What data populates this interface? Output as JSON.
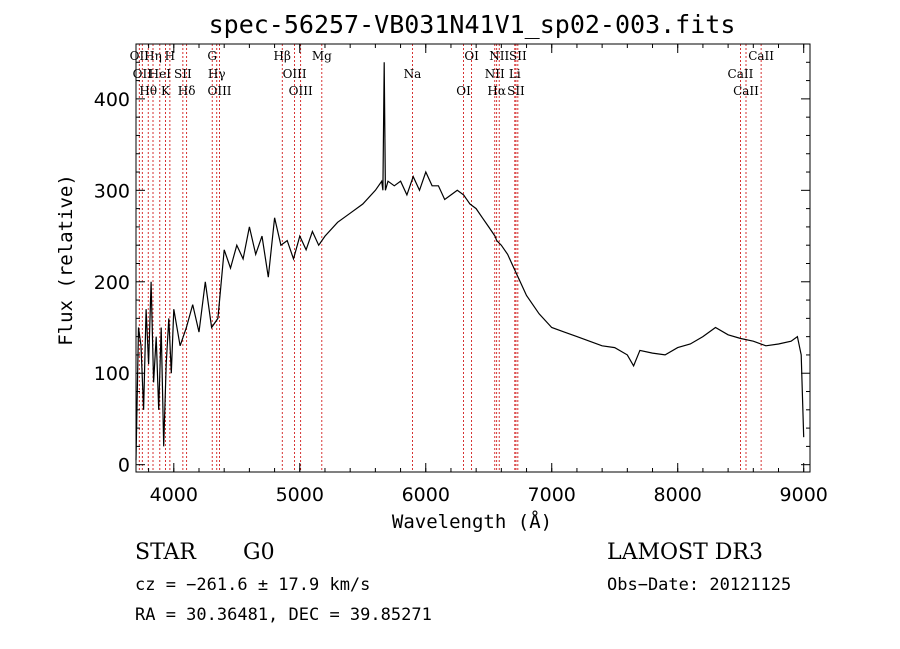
{
  "chart_data": {
    "type": "line",
    "title": "spec-56257-VB031N41V1_sp02-003.fits",
    "xlabel": "Wavelength (Å)",
    "ylabel": "Flux (relative)",
    "xlim": [
      3700,
      9050
    ],
    "ylim": [
      -8,
      460
    ],
    "x_ticks": [
      4000,
      5000,
      6000,
      7000,
      8000,
      9000
    ],
    "x_tick_labels": [
      "4000",
      "5000",
      "6000",
      "7000",
      "8000",
      "9000"
    ],
    "y_ticks": [
      0,
      100,
      200,
      300,
      400
    ],
    "y_tick_labels": [
      "0",
      "100",
      "200",
      "300",
      "400"
    ],
    "series": [
      {
        "name": "flux",
        "x": [
          3700,
          3720,
          3740,
          3760,
          3780,
          3800,
          3820,
          3840,
          3860,
          3880,
          3900,
          3920,
          3940,
          3960,
          3980,
          4000,
          4050,
          4100,
          4150,
          4200,
          4250,
          4300,
          4350,
          4400,
          4450,
          4500,
          4550,
          4600,
          4650,
          4700,
          4750,
          4800,
          4850,
          4900,
          4950,
          5000,
          5050,
          5100,
          5150,
          5200,
          5300,
          5400,
          5500,
          5600,
          5650,
          5660,
          5670,
          5680,
          5700,
          5750,
          5800,
          5850,
          5900,
          5950,
          6000,
          6050,
          6100,
          6150,
          6200,
          6250,
          6300,
          6350,
          6400,
          6450,
          6500,
          6550,
          6563,
          6600,
          6650,
          6700,
          6750,
          6800,
          6900,
          7000,
          7100,
          7200,
          7300,
          7400,
          7500,
          7600,
          7650,
          7700,
          7800,
          7900,
          8000,
          8100,
          8200,
          8300,
          8400,
          8500,
          8600,
          8700,
          8800,
          8900,
          8950,
          8980,
          9000
        ],
        "values": [
          5,
          150,
          130,
          60,
          170,
          110,
          200,
          90,
          140,
          60,
          150,
          20,
          110,
          160,
          100,
          170,
          130,
          150,
          175,
          145,
          200,
          150,
          160,
          235,
          215,
          240,
          225,
          260,
          230,
          250,
          205,
          270,
          240,
          245,
          225,
          250,
          235,
          255,
          240,
          250,
          265,
          275,
          285,
          300,
          310,
          300,
          440,
          300,
          310,
          305,
          310,
          295,
          315,
          300,
          320,
          305,
          305,
          290,
          295,
          300,
          295,
          285,
          280,
          270,
          260,
          250,
          245,
          240,
          230,
          215,
          200,
          185,
          165,
          150,
          145,
          140,
          135,
          130,
          128,
          120,
          108,
          125,
          122,
          120,
          128,
          132,
          140,
          150,
          142,
          138,
          135,
          130,
          132,
          135,
          140,
          120,
          30
        ]
      }
    ],
    "lines": [
      {
        "wavelength": 3726,
        "label": "OII"
      },
      {
        "wavelength": 3750,
        "label": "OII"
      },
      {
        "wavelength": 3797,
        "label": "Hθ"
      },
      {
        "wavelength": 3835,
        "label": "Hη"
      },
      {
        "wavelength": 3889,
        "label": "HeI"
      },
      {
        "wavelength": 3934,
        "label": "K"
      },
      {
        "wavelength": 3969,
        "label": "H"
      },
      {
        "wavelength": 4072,
        "label": "SII"
      },
      {
        "wavelength": 4102,
        "label": "Hδ"
      },
      {
        "wavelength": 4305,
        "label": "G"
      },
      {
        "wavelength": 4341,
        "label": "Hγ"
      },
      {
        "wavelength": 4363,
        "label": "OIII"
      },
      {
        "wavelength": 4861,
        "label": "Hβ"
      },
      {
        "wavelength": 4959,
        "label": "OIII"
      },
      {
        "wavelength": 5007,
        "label": "OIII"
      },
      {
        "wavelength": 5175,
        "label": "Mg"
      },
      {
        "wavelength": 5894,
        "label": "Na"
      },
      {
        "wavelength": 6300,
        "label": "OI"
      },
      {
        "wavelength": 6364,
        "label": "OI"
      },
      {
        "wavelength": 6548,
        "label": "NII"
      },
      {
        "wavelength": 6563,
        "label": "Hα"
      },
      {
        "wavelength": 6583,
        "label": "NII"
      },
      {
        "wavelength": 6707,
        "label": "Li"
      },
      {
        "wavelength": 6716,
        "label": "SII"
      },
      {
        "wavelength": 6731,
        "label": "SII"
      },
      {
        "wavelength": 8498,
        "label": "CaII"
      },
      {
        "wavelength": 8542,
        "label": "CaII"
      },
      {
        "wavelength": 8662,
        "label": "CaII"
      }
    ]
  },
  "info": {
    "class": "STAR",
    "subclass": "G0",
    "survey": "LAMOST DR3",
    "cz": "cz = −261.6 ± 17.9 km/s",
    "obs_date": "Obs−Date: 20121125",
    "coords": "RA =  30.36481, DEC =  39.85271"
  },
  "colors": {
    "line_marker": "#cc0000",
    "spectrum": "#000000"
  }
}
